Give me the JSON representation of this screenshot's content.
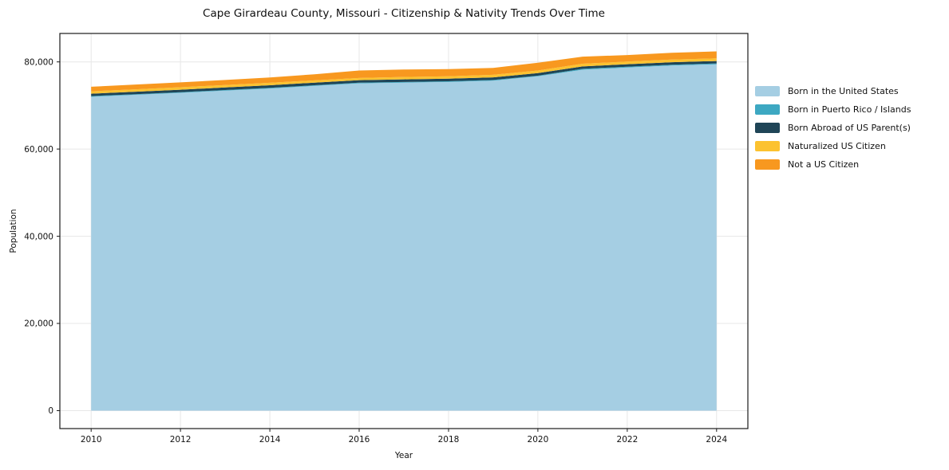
{
  "title": "Cape Girardeau County, Missouri - Citizenship & Nativity Trends Over Time",
  "chart_data": {
    "type": "area",
    "stacked": true,
    "title": "Cape Girardeau County, Missouri - Citizenship & Nativity Trends Over Time",
    "xlabel": "Year",
    "ylabel": "Population",
    "x": [
      2010,
      2011,
      2012,
      2013,
      2014,
      2015,
      2016,
      2017,
      2018,
      2019,
      2020,
      2021,
      2022,
      2023,
      2024
    ],
    "series": [
      {
        "name": "Born in the United States",
        "color": "#a5cee3",
        "values": [
          72000,
          72450,
          72900,
          73400,
          73900,
          74500,
          75080,
          75250,
          75400,
          75700,
          76680,
          78200,
          78700,
          79150,
          79450
        ]
      },
      {
        "name": "Born in Puerto Rico / Islands",
        "color": "#3da8c2",
        "values": [
          150,
          150,
          150,
          150,
          150,
          150,
          150,
          150,
          150,
          150,
          150,
          200,
          200,
          200,
          200
        ]
      },
      {
        "name": "Born Abroad of US Parent(s)",
        "color": "#1f4557",
        "values": [
          550,
          560,
          570,
          580,
          590,
          590,
          590,
          600,
          600,
          600,
          590,
          560,
          560,
          570,
          550
        ]
      },
      {
        "name": "Naturalized US Citizen",
        "color": "#fcc230",
        "values": [
          550,
          550,
          560,
          560,
          570,
          520,
          490,
          540,
          560,
          580,
          610,
          620,
          610,
          600,
          600
        ]
      },
      {
        "name": "Not a US Citizen",
        "color": "#f8981f",
        "values": [
          1050,
          1100,
          1120,
          1160,
          1200,
          1400,
          1720,
          1700,
          1650,
          1600,
          1790,
          1620,
          1500,
          1580,
          1600
        ]
      }
    ],
    "xticks": [
      2010,
      2012,
      2014,
      2016,
      2018,
      2020,
      2022,
      2024
    ],
    "yticks": [
      0,
      20000,
      40000,
      60000,
      80000
    ],
    "xlim": [
      2009.3,
      2024.7
    ],
    "ylim": [
      -4120,
      86520
    ],
    "grid": true,
    "legend_position": "right",
    "colors": {
      "grid": "#e7e7e7",
      "spine": "#1a1a1a",
      "text": "#101010",
      "background": "#ffffff"
    }
  }
}
